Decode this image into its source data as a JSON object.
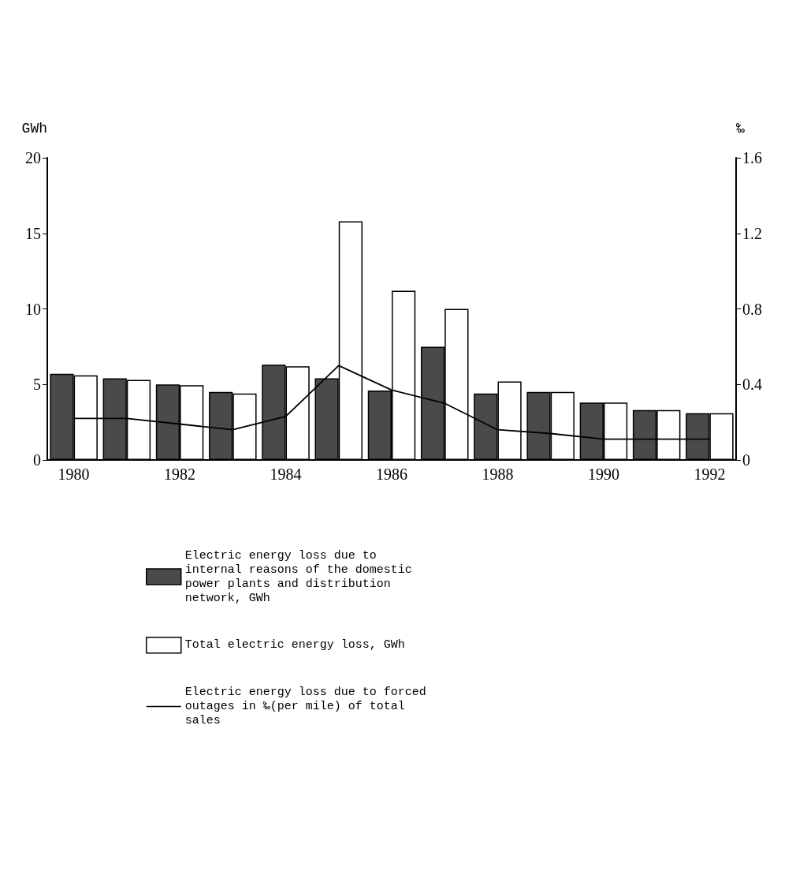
{
  "chart_data": {
    "type": "bar",
    "ylabel": "GWh",
    "y2label": "‰",
    "categories": [
      "1980",
      null,
      "1982",
      null,
      "1984",
      null,
      "1986",
      null,
      "1988",
      null,
      "1990",
      null,
      "1992"
    ],
    "series": [
      {
        "name": "Electric energy loss due to internal reasons of the domestic power plants and distribution network, GWh",
        "color": "#4a4a4a",
        "values": [
          5.7,
          5.4,
          5.0,
          4.5,
          6.3,
          5.4,
          4.6,
          7.5,
          4.4,
          4.5,
          3.8,
          3.3,
          3.1
        ]
      },
      {
        "name": "Total electric energy loss, GWh",
        "color": "#ffffff",
        "values": [
          5.6,
          5.3,
          4.95,
          4.4,
          6.2,
          15.8,
          11.2,
          10.0,
          5.2,
          4.5,
          3.8,
          3.3,
          3.1
        ]
      },
      {
        "name": "Electric energy loss due to forced outages in ‰(per mile) of total sales",
        "type": "line",
        "axis": "y2",
        "color": "#000000",
        "values": [
          0.22,
          0.22,
          0.19,
          0.16,
          0.23,
          0.5,
          0.37,
          0.3,
          0.16,
          0.14,
          0.11,
          0.11,
          0.11
        ]
      }
    ],
    "ylim": [
      0,
      20
    ],
    "yticks": [
      0,
      5,
      10,
      15,
      20
    ],
    "y2lim": [
      0,
      1.6
    ],
    "y2ticks": [
      0,
      0.4,
      0.8,
      1.2,
      1.6
    ],
    "grid": false,
    "legend": "bottom",
    "marker": "none",
    "line_style": "solid"
  }
}
